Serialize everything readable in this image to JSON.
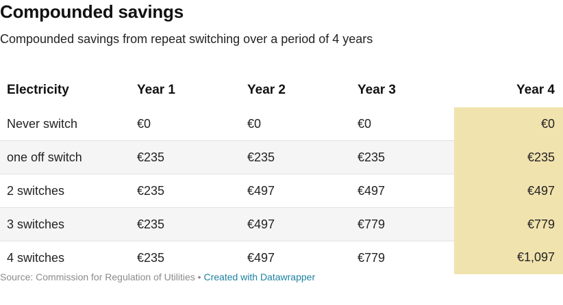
{
  "title": "Compounded savings",
  "subtitle": "Compounded savings from repeat switching over a period of 4 years",
  "table": {
    "columns": [
      "Electricity",
      "Year 1",
      "Year 2",
      "Year 3",
      "Year 4"
    ],
    "rows": [
      [
        "Never switch",
        "€0",
        "€0",
        "€0",
        "€0"
      ],
      [
        "one off switch",
        "€235",
        "€235",
        "€235",
        "€235"
      ],
      [
        "2 switches",
        "€235",
        "€497",
        "€497",
        "€497"
      ],
      [
        "3 switches",
        "€235",
        "€497",
        "€779",
        "€779"
      ],
      [
        "4 switches",
        "€235",
        "€497",
        "€779",
        "€1,097"
      ]
    ],
    "highlight_color": "#f1e3ae",
    "stripe_color": "#f5f5f5"
  },
  "footer": {
    "source": "Source: Commission for Regulation of Utilities",
    "separator": " • ",
    "credit": "Created with Datawrapper",
    "credit_color": "#1d81a2"
  }
}
